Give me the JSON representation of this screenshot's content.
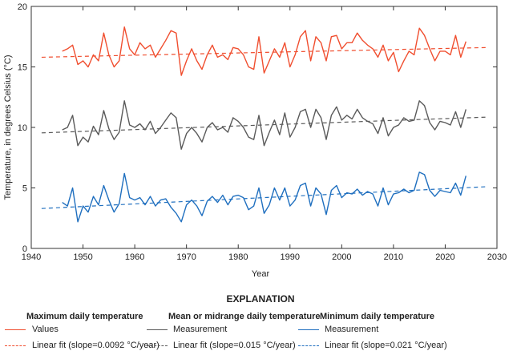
{
  "chart_data": {
    "type": "line",
    "xlabel": "Year",
    "ylabel": "Temperature, in degrees Celsius (°C)",
    "xlim": [
      1940,
      2030
    ],
    "ylim": [
      0,
      20
    ],
    "xticks": [
      "1940",
      "1950",
      "1960",
      "1970",
      "1980",
      "1990",
      "2000",
      "2010",
      "2020",
      "2030"
    ],
    "yticks": [
      "0",
      "5",
      "10",
      "15",
      "20"
    ],
    "grid": false,
    "x": [
      1946,
      1947,
      1948,
      1949,
      1950,
      1951,
      1952,
      1953,
      1954,
      1955,
      1956,
      1957,
      1958,
      1959,
      1960,
      1961,
      1962,
      1963,
      1964,
      1965,
      1966,
      1967,
      1968,
      1969,
      1970,
      1971,
      1972,
      1973,
      1974,
      1975,
      1976,
      1977,
      1978,
      1979,
      1980,
      1981,
      1982,
      1983,
      1984,
      1985,
      1986,
      1987,
      1988,
      1989,
      1990,
      1991,
      1992,
      1993,
      1994,
      1995,
      1996,
      1997,
      1998,
      1999,
      2000,
      2001,
      2002,
      2003,
      2004,
      2005,
      2006,
      2007,
      2008,
      2009,
      2010,
      2011,
      2012,
      2013,
      2014,
      2015,
      2016,
      2017,
      2018,
      2019,
      2020,
      2021,
      2022,
      2023,
      2024
    ],
    "series": [
      {
        "name": "Values",
        "group": "Maximum daily temperature",
        "color": "#f04e2f",
        "style": "solid",
        "values": [
          16.3,
          16.5,
          16.8,
          15.2,
          15.5,
          15.0,
          16.0,
          15.5,
          17.8,
          16.0,
          15.0,
          15.5,
          18.3,
          16.5,
          16.0,
          17.0,
          16.5,
          16.8,
          15.8,
          16.5,
          17.2,
          18.0,
          17.8,
          14.3,
          15.5,
          16.5,
          15.5,
          14.8,
          16.0,
          16.8,
          15.8,
          16.0,
          15.6,
          16.6,
          16.5,
          16.0,
          15.0,
          14.8,
          17.5,
          14.5,
          15.5,
          16.5,
          15.8,
          17.0,
          15.0,
          16.0,
          17.5,
          18.0,
          15.5,
          17.5,
          17.0,
          15.5,
          17.5,
          17.6,
          16.5,
          17.0,
          17.0,
          17.8,
          17.2,
          16.8,
          16.5,
          15.8,
          16.8,
          15.5,
          16.2,
          14.6,
          15.5,
          16.3,
          16.0,
          18.2,
          17.6,
          16.5,
          15.5,
          16.3,
          16.3,
          16.0,
          17.6,
          15.8,
          17.1
        ]
      },
      {
        "name": "Measurement",
        "group": "Mean or midrange daily temperature",
        "color": "#5a5a5a",
        "style": "solid",
        "values": [
          9.8,
          10.0,
          11.0,
          8.5,
          9.2,
          8.8,
          10.1,
          9.4,
          11.4,
          9.9,
          9.0,
          9.6,
          12.2,
          10.2,
          10.0,
          10.3,
          9.8,
          10.5,
          9.5,
          10.0,
          10.6,
          11.2,
          10.8,
          8.2,
          9.5,
          10.0,
          9.5,
          8.8,
          10.0,
          10.4,
          9.8,
          10.0,
          9.6,
          10.8,
          10.5,
          10.0,
          9.2,
          9.0,
          11.0,
          8.5,
          9.6,
          10.6,
          9.4,
          11.2,
          9.2,
          10.0,
          11.3,
          11.5,
          10.0,
          11.5,
          10.8,
          9.0,
          11.0,
          11.7,
          10.6,
          11.0,
          10.7,
          11.5,
          10.8,
          10.5,
          10.3,
          9.5,
          10.8,
          9.3,
          10.0,
          10.2,
          10.8,
          10.5,
          10.6,
          12.2,
          11.8,
          10.4,
          9.8,
          10.5,
          10.4,
          10.2,
          11.3,
          10.0,
          11.5
        ]
      },
      {
        "name": "Measurement",
        "group": "Minimum daily temperature",
        "color": "#1f6fbf",
        "style": "solid",
        "values": [
          3.8,
          3.5,
          5.0,
          2.2,
          3.5,
          3.0,
          4.3,
          3.6,
          5.2,
          4.0,
          3.0,
          3.7,
          6.2,
          4.2,
          4.0,
          4.2,
          3.6,
          4.3,
          3.5,
          4.0,
          4.1,
          3.4,
          2.9,
          2.2,
          3.6,
          4.0,
          3.5,
          2.7,
          3.9,
          4.3,
          3.8,
          4.4,
          3.6,
          4.3,
          4.4,
          4.2,
          3.2,
          3.5,
          5.0,
          2.9,
          3.6,
          5.0,
          4.0,
          5.0,
          3.5,
          4.0,
          5.2,
          5.4,
          3.5,
          5.0,
          4.5,
          2.8,
          4.8,
          5.2,
          4.2,
          4.6,
          4.5,
          4.9,
          4.4,
          4.7,
          4.5,
          3.5,
          5.0,
          3.6,
          4.5,
          4.6,
          4.9,
          4.6,
          4.8,
          6.3,
          6.1,
          4.8,
          4.3,
          4.8,
          4.7,
          4.6,
          5.4,
          4.4,
          6.0
        ]
      }
    ],
    "fits": [
      {
        "name": "Linear fit (slope=0.0092 °C/year)",
        "color": "#f04e2f",
        "x": [
          1942,
          2028
        ],
        "y": [
          15.8,
          16.6
        ]
      },
      {
        "name": "Linear fit (slope=0.015 °C/year)",
        "color": "#5a5a5a",
        "x": [
          1942,
          2028
        ],
        "y": [
          9.55,
          10.85
        ]
      },
      {
        "name": "Linear fit (slope=0.021 °C/year)",
        "color": "#1f6fbf",
        "x": [
          1942,
          2028
        ],
        "y": [
          3.3,
          5.1
        ]
      }
    ]
  },
  "legend": {
    "title": "EXPLANATION",
    "groups": [
      {
        "heading": "Maximum daily temperature",
        "line": "Values",
        "fit": "Linear fit (slope=0.0092 °C/year)"
      },
      {
        "heading": "Mean or midrange daily temperature",
        "line": "Measurement",
        "fit": "Linear fit (slope=0.015 °C/year)"
      },
      {
        "heading": "Minimum daily temperature",
        "line": "Measurement",
        "fit": "Linear fit (slope=0.021 °C/year)"
      }
    ]
  }
}
